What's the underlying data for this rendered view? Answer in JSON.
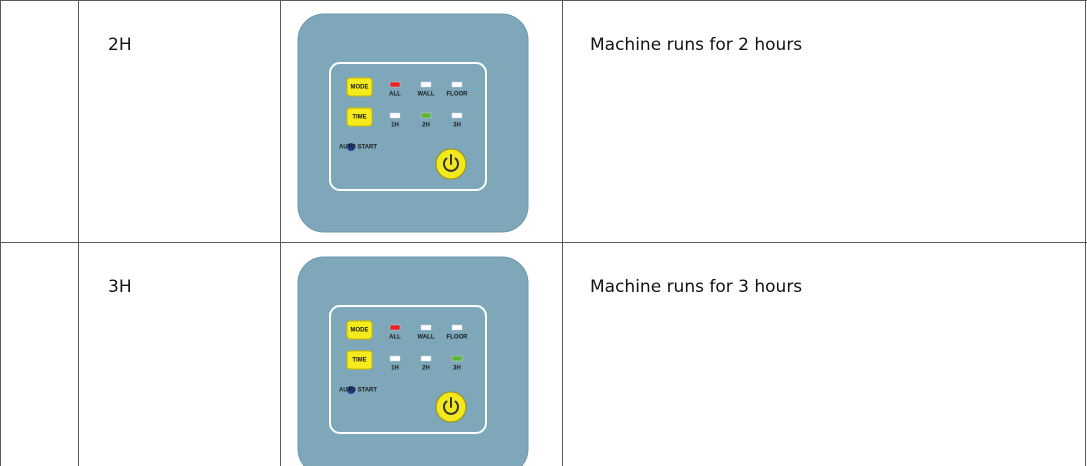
{
  "table": {
    "rows": [
      {
        "label": "2H",
        "description": "Machine runs for 2 hours",
        "panel": {
          "buttons": [
            "MODE",
            "TIME"
          ],
          "mode_lights": [
            "ALL",
            "WALL",
            "FLOOR"
          ],
          "time_lights": [
            "1H",
            "2H",
            "3H"
          ],
          "indicator": "AUTO START",
          "mode_light_colors": [
            "#e52421",
            "#ffffff",
            "#ffffff"
          ],
          "time_light_colors": [
            "#ffffff",
            "#5cb531",
            "#ffffff"
          ]
        }
      },
      {
        "label": "3H",
        "description": "Machine runs for 3 hours",
        "panel": {
          "buttons": [
            "MODE",
            "TIME"
          ],
          "mode_lights": [
            "ALL",
            "WALL",
            "FLOOR"
          ],
          "time_lights": [
            "1H",
            "2H",
            "3H"
          ],
          "indicator": "AUTO START",
          "mode_light_colors": [
            "#e52421",
            "#ffffff",
            "#ffffff"
          ],
          "time_light_colors": [
            "#ffffff",
            "#ffffff",
            "#5cb531"
          ]
        }
      }
    ]
  }
}
